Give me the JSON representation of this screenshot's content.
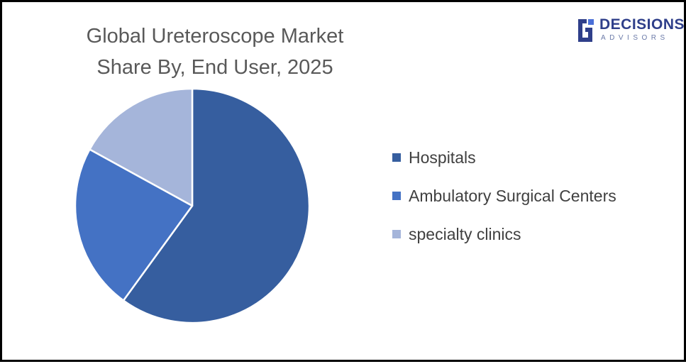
{
  "chart_data": {
    "type": "pie",
    "title_lines": [
      "Global Ureteroscope Market",
      "Share By, End User, 2025"
    ],
    "categories": [
      "Hospitals",
      "Ambulatory Surgical Centers",
      "specialty clinics"
    ],
    "values": [
      60,
      23,
      17
    ],
    "colors": [
      "#365e9f",
      "#4472c4",
      "#a5b5da"
    ],
    "legend_position": "right"
  },
  "logo": {
    "word": "DECISIONS",
    "sub": "ADVISORS"
  }
}
